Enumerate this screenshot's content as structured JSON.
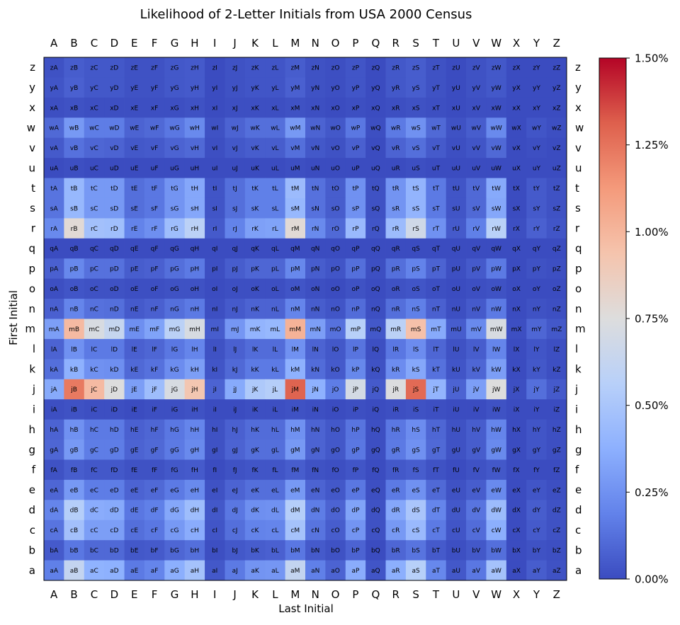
{
  "chart_data": {
    "type": "heatmap",
    "title": "Likelihood of 2-Letter Initials from USA 2000 Census",
    "xlabel": "Last Initial",
    "ylabel": "First Initial",
    "x_labels": [
      "A",
      "B",
      "C",
      "D",
      "E",
      "F",
      "G",
      "H",
      "I",
      "J",
      "K",
      "L",
      "M",
      "N",
      "O",
      "P",
      "Q",
      "R",
      "S",
      "T",
      "U",
      "V",
      "W",
      "X",
      "Y",
      "Z"
    ],
    "y_labels_top_to_bottom": [
      "z",
      "y",
      "x",
      "w",
      "v",
      "u",
      "t",
      "s",
      "r",
      "q",
      "p",
      "o",
      "n",
      "m",
      "l",
      "k",
      "j",
      "i",
      "h",
      "g",
      "f",
      "e",
      "d",
      "c",
      "b",
      "a"
    ],
    "value_unit": "percent",
    "colorbar": {
      "min": 0.0,
      "max": 1.5,
      "ticks": [
        0.0,
        0.25,
        0.5,
        0.75,
        1.0,
        1.25,
        1.5
      ],
      "tick_labels": [
        "0.00%",
        "0.25%",
        "0.50%",
        "0.75%",
        "1.00%",
        "1.25%",
        "1.50%"
      ],
      "colormap": "coolwarm",
      "position": "right"
    },
    "values": [
      [
        0.02,
        0.06,
        0.04,
        0.04,
        0.02,
        0.02,
        0.04,
        0.05,
        0.0,
        0.02,
        0.03,
        0.03,
        0.06,
        0.02,
        0.01,
        0.03,
        0.0,
        0.04,
        0.06,
        0.02,
        0.0,
        0.02,
        0.04,
        0.0,
        0.0,
        0.0
      ],
      [
        0.03,
        0.07,
        0.04,
        0.04,
        0.02,
        0.02,
        0.04,
        0.05,
        0.0,
        0.02,
        0.03,
        0.03,
        0.07,
        0.02,
        0.01,
        0.03,
        0.0,
        0.04,
        0.06,
        0.02,
        0.0,
        0.02,
        0.04,
        0.0,
        0.0,
        0.0
      ],
      [
        0.01,
        0.02,
        0.01,
        0.01,
        0.01,
        0.01,
        0.01,
        0.02,
        0.0,
        0.01,
        0.01,
        0.01,
        0.02,
        0.01,
        0.0,
        0.01,
        0.0,
        0.01,
        0.02,
        0.01,
        0.0,
        0.01,
        0.01,
        0.0,
        0.0,
        0.0
      ],
      [
        0.1,
        0.28,
        0.17,
        0.17,
        0.08,
        0.1,
        0.15,
        0.22,
        0.02,
        0.08,
        0.12,
        0.12,
        0.28,
        0.08,
        0.04,
        0.15,
        0.01,
        0.16,
        0.25,
        0.1,
        0.02,
        0.06,
        0.22,
        0.0,
        0.03,
        0.01
      ],
      [
        0.05,
        0.13,
        0.09,
        0.08,
        0.04,
        0.05,
        0.08,
        0.1,
        0.01,
        0.04,
        0.06,
        0.06,
        0.12,
        0.04,
        0.02,
        0.07,
        0.0,
        0.08,
        0.12,
        0.05,
        0.01,
        0.03,
        0.1,
        0.0,
        0.01,
        0.0
      ],
      [
        0.0,
        0.01,
        0.0,
        0.0,
        0.0,
        0.0,
        0.0,
        0.0,
        0.0,
        0.0,
        0.0,
        0.0,
        0.01,
        0.0,
        0.0,
        0.0,
        0.0,
        0.0,
        0.01,
        0.0,
        0.0,
        0.0,
        0.0,
        0.0,
        0.0,
        0.0
      ],
      [
        0.14,
        0.42,
        0.28,
        0.28,
        0.12,
        0.15,
        0.26,
        0.34,
        0.03,
        0.12,
        0.18,
        0.18,
        0.44,
        0.13,
        0.06,
        0.25,
        0.02,
        0.26,
        0.4,
        0.16,
        0.03,
        0.1,
        0.35,
        0.0,
        0.05,
        0.02
      ],
      [
        0.14,
        0.42,
        0.28,
        0.28,
        0.12,
        0.15,
        0.26,
        0.34,
        0.03,
        0.12,
        0.18,
        0.18,
        0.42,
        0.13,
        0.06,
        0.25,
        0.02,
        0.26,
        0.4,
        0.16,
        0.03,
        0.1,
        0.34,
        0.0,
        0.05,
        0.02
      ],
      [
        0.22,
        0.78,
        0.47,
        0.46,
        0.19,
        0.24,
        0.45,
        0.58,
        0.05,
        0.19,
        0.31,
        0.32,
        0.78,
        0.22,
        0.1,
        0.43,
        0.03,
        0.44,
        0.68,
        0.25,
        0.05,
        0.18,
        0.57,
        0.01,
        0.07,
        0.03
      ],
      [
        0.0,
        0.0,
        0.0,
        0.0,
        0.0,
        0.0,
        0.0,
        0.0,
        0.0,
        0.0,
        0.0,
        0.0,
        0.0,
        0.0,
        0.0,
        0.0,
        0.0,
        0.0,
        0.0,
        0.0,
        0.0,
        0.0,
        0.0,
        0.0,
        0.0,
        0.0
      ],
      [
        0.07,
        0.21,
        0.13,
        0.13,
        0.06,
        0.07,
        0.12,
        0.16,
        0.01,
        0.06,
        0.09,
        0.09,
        0.21,
        0.06,
        0.03,
        0.12,
        0.01,
        0.12,
        0.19,
        0.08,
        0.01,
        0.05,
        0.16,
        0.0,
        0.02,
        0.01
      ],
      [
        0.01,
        0.03,
        0.02,
        0.02,
        0.01,
        0.01,
        0.02,
        0.02,
        0.0,
        0.01,
        0.01,
        0.01,
        0.03,
        0.01,
        0.0,
        0.02,
        0.0,
        0.02,
        0.03,
        0.01,
        0.0,
        0.01,
        0.02,
        0.0,
        0.0,
        0.0
      ],
      [
        0.07,
        0.2,
        0.13,
        0.12,
        0.05,
        0.07,
        0.12,
        0.16,
        0.01,
        0.05,
        0.08,
        0.08,
        0.2,
        0.06,
        0.03,
        0.11,
        0.01,
        0.12,
        0.18,
        0.07,
        0.01,
        0.05,
        0.16,
        0.0,
        0.02,
        0.01
      ],
      [
        0.3,
        0.98,
        0.72,
        0.63,
        0.24,
        0.32,
        0.58,
        0.72,
        0.06,
        0.27,
        0.4,
        0.42,
        1.02,
        0.3,
        0.13,
        0.56,
        0.04,
        0.58,
        0.95,
        0.35,
        0.06,
        0.22,
        0.72,
        0.01,
        0.09,
        0.04
      ],
      [
        0.08,
        0.25,
        0.16,
        0.16,
        0.07,
        0.09,
        0.15,
        0.2,
        0.02,
        0.07,
        0.11,
        0.11,
        0.25,
        0.08,
        0.04,
        0.14,
        0.01,
        0.15,
        0.23,
        0.09,
        0.02,
        0.06,
        0.2,
        0.0,
        0.03,
        0.01
      ],
      [
        0.12,
        0.38,
        0.25,
        0.24,
        0.1,
        0.13,
        0.23,
        0.3,
        0.03,
        0.1,
        0.16,
        0.16,
        0.38,
        0.11,
        0.05,
        0.21,
        0.02,
        0.23,
        0.34,
        0.13,
        0.03,
        0.09,
        0.3,
        0.0,
        0.04,
        0.01
      ],
      [
        0.35,
        1.23,
        0.98,
        0.75,
        0.3,
        0.45,
        0.72,
        0.92,
        0.08,
        0.35,
        0.52,
        0.55,
        1.3,
        0.38,
        0.17,
        0.7,
        0.05,
        0.74,
        1.28,
        0.4,
        0.08,
        0.3,
        0.75,
        0.01,
        0.12,
        0.05
      ],
      [
        0.01,
        0.02,
        0.01,
        0.01,
        0.0,
        0.01,
        0.01,
        0.02,
        0.0,
        0.0,
        0.01,
        0.01,
        0.02,
        0.01,
        0.0,
        0.01,
        0.0,
        0.01,
        0.02,
        0.01,
        0.0,
        0.0,
        0.02,
        0.0,
        0.0,
        0.0
      ],
      [
        0.08,
        0.25,
        0.16,
        0.16,
        0.07,
        0.09,
        0.15,
        0.2,
        0.02,
        0.07,
        0.11,
        0.11,
        0.25,
        0.08,
        0.04,
        0.14,
        0.01,
        0.15,
        0.23,
        0.09,
        0.02,
        0.06,
        0.2,
        0.0,
        0.03,
        0.01
      ],
      [
        0.09,
        0.28,
        0.17,
        0.17,
        0.08,
        0.1,
        0.16,
        0.22,
        0.02,
        0.08,
        0.12,
        0.12,
        0.28,
        0.08,
        0.04,
        0.15,
        0.01,
        0.16,
        0.25,
        0.1,
        0.02,
        0.06,
        0.22,
        0.0,
        0.03,
        0.01
      ],
      [
        0.02,
        0.06,
        0.04,
        0.04,
        0.02,
        0.02,
        0.04,
        0.05,
        0.0,
        0.02,
        0.03,
        0.03,
        0.06,
        0.02,
        0.01,
        0.03,
        0.0,
        0.04,
        0.06,
        0.02,
        0.0,
        0.02,
        0.04,
        0.0,
        0.0,
        0.0
      ],
      [
        0.09,
        0.28,
        0.17,
        0.17,
        0.08,
        0.1,
        0.16,
        0.22,
        0.02,
        0.08,
        0.12,
        0.12,
        0.28,
        0.08,
        0.04,
        0.15,
        0.01,
        0.16,
        0.25,
        0.1,
        0.02,
        0.06,
        0.22,
        0.0,
        0.03,
        0.01
      ],
      [
        0.2,
        0.55,
        0.36,
        0.35,
        0.15,
        0.18,
        0.34,
        0.45,
        0.04,
        0.15,
        0.24,
        0.25,
        0.55,
        0.17,
        0.08,
        0.32,
        0.02,
        0.34,
        0.5,
        0.2,
        0.04,
        0.14,
        0.44,
        0.0,
        0.06,
        0.02
      ],
      [
        0.14,
        0.47,
        0.3,
        0.3,
        0.12,
        0.15,
        0.28,
        0.36,
        0.03,
        0.12,
        0.19,
        0.2,
        0.48,
        0.14,
        0.06,
        0.26,
        0.02,
        0.28,
        0.43,
        0.16,
        0.03,
        0.11,
        0.37,
        0.0,
        0.05,
        0.02
      ],
      [
        0.05,
        0.15,
        0.1,
        0.1,
        0.04,
        0.05,
        0.09,
        0.12,
        0.01,
        0.04,
        0.06,
        0.07,
        0.15,
        0.05,
        0.02,
        0.08,
        0.0,
        0.09,
        0.14,
        0.05,
        0.01,
        0.04,
        0.12,
        0.0,
        0.02,
        0.01
      ],
      [
        0.18,
        0.62,
        0.39,
        0.38,
        0.16,
        0.2,
        0.37,
        0.48,
        0.04,
        0.16,
        0.26,
        0.27,
        0.62,
        0.18,
        0.08,
        0.36,
        0.03,
        0.37,
        0.56,
        0.21,
        0.04,
        0.15,
        0.48,
        0.0,
        0.06,
        0.02
      ]
    ]
  }
}
